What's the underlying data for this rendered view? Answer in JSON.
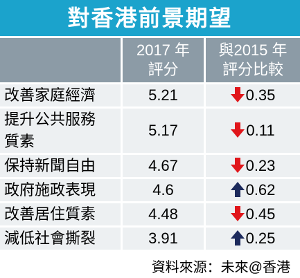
{
  "title": "對香港前景期望",
  "table": {
    "header": [
      [
        "2017 年",
        "評分"
      ],
      [
        "與2015 年",
        "評分比較"
      ]
    ],
    "rows": [
      [
        "改善家庭經濟",
        5.21,
        0.35
      ],
      [
        "提升公共服務質素",
        5.17,
        0.11
      ],
      [
        "保持新聞自由",
        4.67,
        0.23
      ],
      [
        "政府施政表現",
        4.6,
        0.62
      ],
      [
        "改善居住質素",
        4.48,
        0.45
      ],
      [
        "減低社會撕裂",
        3.91,
        0.25
      ]
    ]
  },
  "source": "資料來源：未來@香港"
}
